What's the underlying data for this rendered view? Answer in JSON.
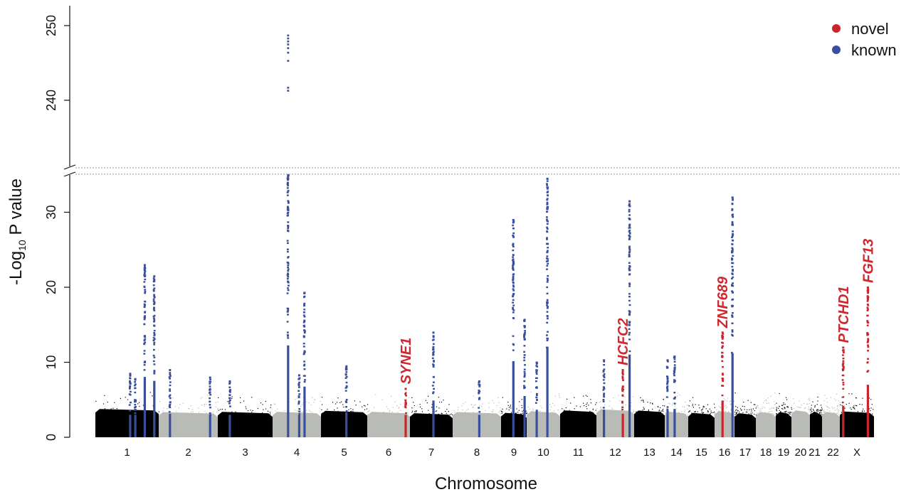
{
  "chart_data": {
    "type": "scatter",
    "plot_kind": "manhattan",
    "xlabel": "Chromosome",
    "ylabel": "-Log",
    "ylabel_sub": "10",
    "ylabel_suffix": " P value",
    "y_axis_break": true,
    "ylim_lower": [
      0,
      35
    ],
    "ylim_upper": [
      231,
      252
    ],
    "yticks_lower": [
      "0",
      "10",
      "20",
      "30"
    ],
    "yticks_upper": [
      "240",
      "250"
    ],
    "chromosomes": [
      "1",
      "2",
      "3",
      "4",
      "5",
      "6",
      "7",
      "8",
      "9",
      "10",
      "11",
      "12",
      "13",
      "14",
      "15",
      "16",
      "17",
      "18",
      "19",
      "20",
      "21",
      "22",
      "X"
    ],
    "chromosome_colors": [
      "#000000",
      "#b8bbb6"
    ],
    "legend": {
      "position": "top-right",
      "items": [
        {
          "label": "novel",
          "color": "#c8262c"
        },
        {
          "label": "known",
          "color": "#3a4f9c"
        }
      ]
    },
    "known_loci": [
      {
        "chr": "1",
        "pos": 0.55,
        "max": 8.5
      },
      {
        "chr": "1",
        "pos": 0.63,
        "max": 7.8
      },
      {
        "chr": "1",
        "pos": 0.78,
        "max": 23
      },
      {
        "chr": "1",
        "pos": 0.93,
        "max": 21.5
      },
      {
        "chr": "2",
        "pos": 0.19,
        "max": 9
      },
      {
        "chr": "2",
        "pos": 0.87,
        "max": 8
      },
      {
        "chr": "3",
        "pos": 0.22,
        "max": 7.5
      },
      {
        "chr": "4",
        "pos": 0.32,
        "max": 248.8
      },
      {
        "chr": "4",
        "pos": 0.55,
        "max": 8.3
      },
      {
        "chr": "4",
        "pos": 0.66,
        "max": 19.3
      },
      {
        "chr": "5",
        "pos": 0.55,
        "max": 9.5
      },
      {
        "chr": "7",
        "pos": 0.55,
        "max": 14
      },
      {
        "chr": "8",
        "pos": 0.55,
        "max": 7.5
      },
      {
        "chr": "9",
        "pos": 0.48,
        "max": 29
      },
      {
        "chr": "9",
        "pos": 0.92,
        "max": 15.7
      },
      {
        "chr": "10",
        "pos": 0.3,
        "max": 10
      },
      {
        "chr": "10",
        "pos": 0.62,
        "max": 34.5
      },
      {
        "chr": "12",
        "pos": 0.2,
        "max": 10.3
      },
      {
        "chr": "12",
        "pos": 0.88,
        "max": 31.5
      },
      {
        "chr": "14",
        "pos": 0.12,
        "max": 10.3
      },
      {
        "chr": "14",
        "pos": 0.42,
        "max": 10.8
      },
      {
        "chr": "16",
        "pos": 0.9,
        "max": 32
      }
    ],
    "novel_loci": [
      {
        "gene": "SYNE1",
        "chr": "6",
        "pos": 0.9,
        "max": 6.5
      },
      {
        "gene": "HCFC2",
        "chr": "12",
        "pos": 0.7,
        "max": 9
      },
      {
        "gene": "ZNF689",
        "chr": "16",
        "pos": 0.4,
        "max": 14
      },
      {
        "gene": "PTCHD1",
        "chr": "X",
        "pos": 0.1,
        "max": 12
      },
      {
        "gene": "FGF13",
        "chr": "X",
        "pos": 0.82,
        "max": 20
      }
    ]
  }
}
